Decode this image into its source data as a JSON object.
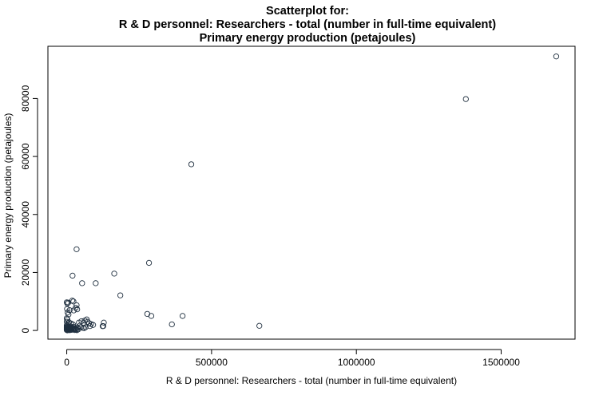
{
  "chart_data": {
    "type": "scatter",
    "title_lines": [
      "Scatterplot for:",
      "R & D personnel: Researchers - total (number in full-time equivalent)",
      "Primary energy production (petajoules)"
    ],
    "xlabel": "R & D personnel: Researchers - total (number in full-time equivalent)",
    "ylabel": "Primary energy production (petajoules)",
    "xlim": [
      -65000,
      1755000
    ],
    "ylim": [
      -3000,
      98000
    ],
    "x_ticks": [
      0,
      500000,
      1000000,
      1500000
    ],
    "y_ticks": [
      0,
      20000,
      40000,
      60000,
      80000
    ],
    "grid": false,
    "marker": "open-circle",
    "point_color": "#1f2f3f",
    "points": [
      [
        1690000,
        94500
      ],
      [
        1378000,
        79800
      ],
      [
        430000,
        57300
      ],
      [
        34000,
        28000
      ],
      [
        284000,
        23300
      ],
      [
        20000,
        18900
      ],
      [
        164000,
        19600
      ],
      [
        100000,
        16300
      ],
      [
        53000,
        16300
      ],
      [
        185000,
        12100
      ],
      [
        278000,
        5700
      ],
      [
        292000,
        5000
      ],
      [
        400000,
        5000
      ],
      [
        363000,
        2100
      ],
      [
        665000,
        1600
      ],
      [
        128000,
        2700
      ],
      [
        124000,
        1500
      ],
      [
        126000,
        1500
      ],
      [
        0,
        9700
      ],
      [
        2000,
        9300
      ],
      [
        5000,
        9600
      ],
      [
        19000,
        10300
      ],
      [
        23000,
        10000
      ],
      [
        34000,
        8700
      ],
      [
        31000,
        7800
      ],
      [
        1000,
        7400
      ],
      [
        10000,
        7000
      ],
      [
        24000,
        6900
      ],
      [
        36000,
        7300
      ],
      [
        3000,
        6200
      ],
      [
        6000,
        5500
      ],
      [
        0,
        4200
      ],
      [
        2000,
        3800
      ],
      [
        0,
        3000
      ],
      [
        4000,
        2500
      ],
      [
        8000,
        2800
      ],
      [
        15000,
        2400
      ],
      [
        22000,
        2000
      ],
      [
        42000,
        2700
      ],
      [
        51000,
        3200
      ],
      [
        58000,
        2600
      ],
      [
        62000,
        3400
      ],
      [
        69000,
        3800
      ],
      [
        72000,
        3000
      ],
      [
        77000,
        2500
      ],
      [
        84000,
        2200
      ],
      [
        91000,
        1900
      ],
      [
        80000,
        1500
      ],
      [
        45000,
        1600
      ],
      [
        49000,
        1200
      ],
      [
        55000,
        900
      ],
      [
        60000,
        800
      ],
      [
        65000,
        1100
      ],
      [
        37000,
        900
      ],
      [
        30000,
        700
      ],
      [
        26000,
        500
      ],
      [
        40000,
        400
      ],
      [
        0,
        1800
      ],
      [
        0,
        1300
      ],
      [
        0,
        1000
      ],
      [
        0,
        700
      ],
      [
        0,
        400
      ],
      [
        0,
        150
      ],
      [
        3000,
        1600
      ],
      [
        3000,
        1100
      ],
      [
        4000,
        600
      ],
      [
        5000,
        300
      ],
      [
        6000,
        1200
      ],
      [
        7000,
        200
      ],
      [
        8000,
        900
      ],
      [
        9000,
        500
      ],
      [
        10000,
        100
      ],
      [
        11000,
        1400
      ],
      [
        12000,
        700
      ],
      [
        13000,
        350
      ],
      [
        14000,
        900
      ],
      [
        16000,
        200
      ],
      [
        18000,
        600
      ],
      [
        20000,
        1000
      ],
      [
        21000,
        300
      ],
      [
        23000,
        1300
      ],
      [
        25000,
        800
      ],
      [
        27000,
        150
      ],
      [
        29000,
        450
      ],
      [
        32000,
        250
      ],
      [
        35000,
        100
      ],
      [
        2000,
        50
      ],
      [
        1000,
        250
      ]
    ]
  }
}
